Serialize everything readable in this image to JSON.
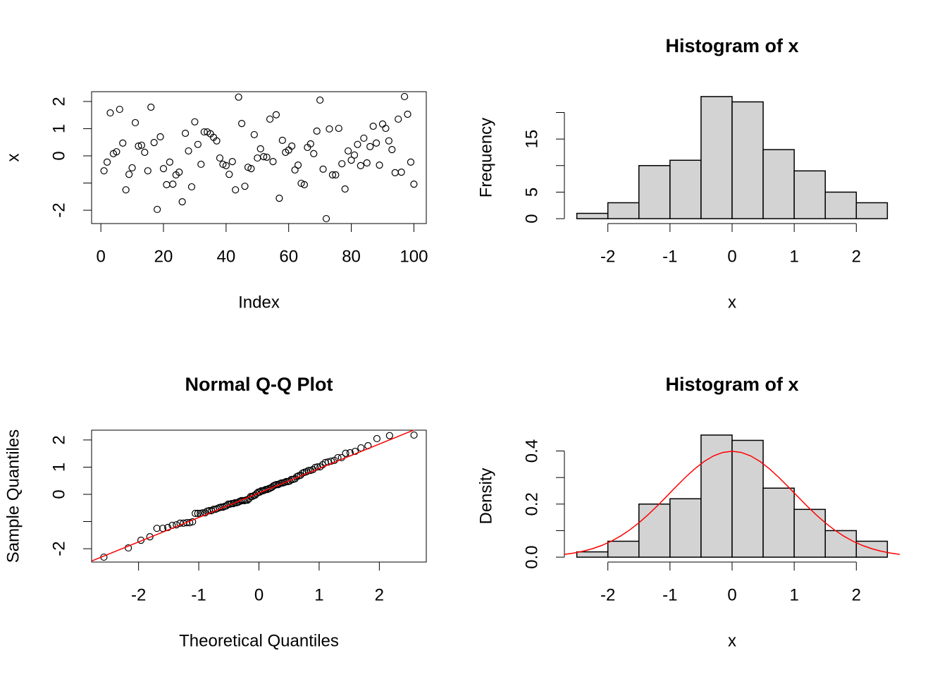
{
  "chart_data": [
    {
      "type": "scatter",
      "xlabel": "Index",
      "ylabel": "x",
      "box": true,
      "color": "#000000",
      "x": [
        1,
        2,
        3,
        4,
        5,
        6,
        7,
        8,
        9,
        10,
        11,
        12,
        13,
        14,
        15,
        16,
        17,
        18,
        19,
        20,
        21,
        22,
        23,
        24,
        25,
        26,
        27,
        28,
        29,
        30,
        31,
        32,
        33,
        34,
        35,
        36,
        37,
        38,
        39,
        40,
        41,
        42,
        43,
        44,
        45,
        46,
        47,
        48,
        49,
        50,
        51,
        52,
        53,
        54,
        55,
        56,
        57,
        58,
        59,
        60,
        61,
        62,
        63,
        64,
        65,
        66,
        67,
        68,
        69,
        70,
        71,
        72,
        73,
        74,
        75,
        76,
        77,
        78,
        79,
        80,
        81,
        82,
        83,
        84,
        85,
        86,
        87,
        88,
        89,
        90,
        91,
        92,
        93,
        94,
        95,
        96,
        97,
        98,
        99,
        100
      ],
      "values": [
        -0.55,
        -0.23,
        1.58,
        0.08,
        0.15,
        1.71,
        0.47,
        -1.25,
        -0.68,
        -0.44,
        1.22,
        0.36,
        0.39,
        0.13,
        -0.55,
        1.79,
        0.49,
        -1.97,
        0.7,
        -0.47,
        -1.06,
        -0.23,
        -1.04,
        -0.7,
        -0.6,
        -1.69,
        0.83,
        0.18,
        -1.14,
        1.25,
        0.42,
        -0.31,
        0.88,
        0.88,
        0.81,
        0.68,
        0.55,
        -0.08,
        -0.31,
        -0.36,
        -0.68,
        -0.21,
        -1.25,
        2.16,
        1.19,
        -1.12,
        -0.42,
        -0.47,
        0.78,
        -0.08,
        0.26,
        -0.03,
        -0.05,
        1.35,
        -0.21,
        1.51,
        -1.56,
        0.57,
        0.13,
        0.21,
        0.36,
        -0.52,
        -0.34,
        -1.01,
        -1.06,
        0.31,
        0.44,
        0.08,
        0.91,
        2.05,
        -0.49,
        -2.31,
        0.99,
        -0.7,
        -0.7,
        1.01,
        -0.29,
        -1.22,
        0.18,
        -0.16,
        0.03,
        0.42,
        -0.36,
        0.65,
        -0.26,
        0.34,
        1.09,
        0.47,
        -0.34,
        1.17,
        1.01,
        0.55,
        0.23,
        -0.62,
        1.35,
        -0.6,
        2.18,
        1.53,
        -0.23,
        -1.04
      ],
      "xlim": [
        -2.96,
        103.96
      ],
      "ylim": [
        -2.49,
        2.36
      ],
      "xticks": [
        0,
        20,
        40,
        60,
        80,
        100
      ],
      "yticks": [
        -2,
        {
          "value": -1,
          "label": null
        },
        0,
        1,
        2
      ]
    },
    {
      "type": "histogram",
      "title": "Histogram of x",
      "xlabel": "x",
      "ylabel": "Frequency",
      "color": "#d3d3d3",
      "bins": [
        -2.5,
        -2,
        -1.5,
        -1,
        -0.5,
        0,
        0.5,
        1,
        1.5,
        2,
        2.5
      ],
      "values": [
        1,
        3,
        10,
        11,
        23,
        22,
        13,
        9,
        5,
        3
      ],
      "xlim": [
        -2.7,
        2.7
      ],
      "ylim": [
        -0.92,
        23.92
      ],
      "xticks": [
        -2,
        -1,
        0,
        1,
        2
      ],
      "yticks": [
        0,
        5,
        {
          "value": 10,
          "label": null
        },
        15,
        {
          "value": 20,
          "label": null
        }
      ]
    },
    {
      "type": "qq",
      "title": "Normal Q-Q Plot",
      "xlabel": "Theoretical Quantiles",
      "ylabel": "Sample Quantiles",
      "box": true,
      "color": "#000000",
      "x": [
        -2.576,
        -2.17,
        -1.96,
        -1.812,
        -1.695,
        -1.598,
        -1.514,
        -1.44,
        -1.372,
        -1.311,
        -1.254,
        -1.2,
        -1.15,
        -1.103,
        -1.058,
        -1.015,
        -0.974,
        -0.935,
        -0.896,
        -0.86,
        -0.824,
        -0.789,
        -0.755,
        -0.722,
        -0.69,
        -0.659,
        -0.628,
        -0.598,
        -0.568,
        -0.539,
        -0.51,
        -0.482,
        -0.454,
        -0.426,
        -0.399,
        -0.372,
        -0.345,
        -0.319,
        -0.292,
        -0.266,
        -0.24,
        -0.215,
        -0.189,
        -0.164,
        -0.138,
        -0.113,
        -0.088,
        -0.063,
        -0.038,
        -0.013,
        0.013,
        0.038,
        0.063,
        0.088,
        0.113,
        0.138,
        0.164,
        0.189,
        0.215,
        0.24,
        0.266,
        0.292,
        0.319,
        0.345,
        0.372,
        0.399,
        0.426,
        0.454,
        0.482,
        0.51,
        0.539,
        0.568,
        0.598,
        0.628,
        0.659,
        0.69,
        0.722,
        0.755,
        0.789,
        0.824,
        0.86,
        0.896,
        0.935,
        0.974,
        1.015,
        1.058,
        1.103,
        1.15,
        1.2,
        1.254,
        1.311,
        1.372,
        1.44,
        1.514,
        1.598,
        1.695,
        1.812,
        1.96,
        2.17,
        2.576
      ],
      "values": [
        -2.31,
        -1.97,
        -1.69,
        -1.56,
        -1.25,
        -1.25,
        -1.22,
        -1.14,
        -1.12,
        -1.06,
        -1.06,
        -1.04,
        -1.04,
        -1.01,
        -0.7,
        -0.7,
        -0.7,
        -0.68,
        -0.68,
        -0.62,
        -0.6,
        -0.6,
        -0.55,
        -0.55,
        -0.52,
        -0.49,
        -0.47,
        -0.47,
        -0.44,
        -0.42,
        -0.36,
        -0.36,
        -0.34,
        -0.34,
        -0.31,
        -0.31,
        -0.29,
        -0.26,
        -0.23,
        -0.23,
        -0.23,
        -0.21,
        -0.21,
        -0.16,
        -0.08,
        -0.08,
        -0.05,
        -0.03,
        0.03,
        0.08,
        0.08,
        0.13,
        0.13,
        0.15,
        0.18,
        0.18,
        0.21,
        0.23,
        0.26,
        0.31,
        0.34,
        0.36,
        0.36,
        0.39,
        0.42,
        0.42,
        0.44,
        0.47,
        0.47,
        0.49,
        0.55,
        0.55,
        0.57,
        0.65,
        0.68,
        0.7,
        0.78,
        0.81,
        0.83,
        0.88,
        0.88,
        0.91,
        0.99,
        1.01,
        1.01,
        1.09,
        1.17,
        1.19,
        1.22,
        1.25,
        1.35,
        1.35,
        1.51,
        1.53,
        1.58,
        1.71,
        1.79,
        2.05,
        2.16,
        2.18
      ],
      "line": {
        "intercept": 0.05,
        "slope": 0.9,
        "color": "#ff0000"
      },
      "xlim": [
        -2.78,
        2.78
      ],
      "ylim": [
        -2.49,
        2.36
      ],
      "xticks": [
        -2,
        -1,
        0,
        1,
        2
      ],
      "yticks": [
        -2,
        {
          "value": -1,
          "label": null
        },
        0,
        1,
        2
      ]
    },
    {
      "type": "histogram",
      "title": "Histogram of x",
      "xlabel": "x",
      "ylabel": "Density",
      "color": "#d3d3d3",
      "bins": [
        -2.5,
        -2,
        -1.5,
        -1,
        -0.5,
        0,
        0.5,
        1,
        1.5,
        2,
        2.5
      ],
      "values": [
        0.02,
        0.06,
        0.2,
        0.22,
        0.46,
        0.44,
        0.26,
        0.18,
        0.1,
        0.06
      ],
      "curve": {
        "color": "#ff0000",
        "x": [
          -2.7,
          -2.55,
          -2.4,
          -2.25,
          -2.1,
          -1.95,
          -1.8,
          -1.65,
          -1.5,
          -1.35,
          -1.2,
          -1.05,
          -0.9,
          -0.75,
          -0.6,
          -0.45,
          -0.3,
          -0.15,
          0,
          0.15,
          0.3,
          0.45,
          0.6,
          0.75,
          0.9,
          1.05,
          1.2,
          1.35,
          1.5,
          1.65,
          1.8,
          1.95,
          2.1,
          2.25,
          2.4,
          2.55,
          2.7
        ],
        "values": [
          0.0104,
          0.0154,
          0.0224,
          0.0317,
          0.044,
          0.0596,
          0.079,
          0.1023,
          0.1295,
          0.1604,
          0.1942,
          0.2299,
          0.2661,
          0.3011,
          0.3332,
          0.3605,
          0.3814,
          0.3945,
          0.3989,
          0.3945,
          0.3814,
          0.3605,
          0.3332,
          0.3011,
          0.2661,
          0.2299,
          0.1942,
          0.1604,
          0.1295,
          0.1023,
          0.079,
          0.0596,
          0.044,
          0.0317,
          0.0224,
          0.0154,
          0.0104
        ]
      },
      "xlim": [
        -2.7,
        2.7
      ],
      "ylim": [
        -0.0184,
        0.4784
      ],
      "xticks": [
        -2,
        -1,
        0,
        1,
        2
      ],
      "yticks": [
        {
          "value": 0,
          "label": "0.0"
        },
        {
          "value": 0.1,
          "label": null
        },
        {
          "value": 0.2,
          "label": "0.2"
        },
        {
          "value": 0.3,
          "label": null
        },
        {
          "value": 0.4,
          "label": "0.4"
        }
      ]
    }
  ]
}
